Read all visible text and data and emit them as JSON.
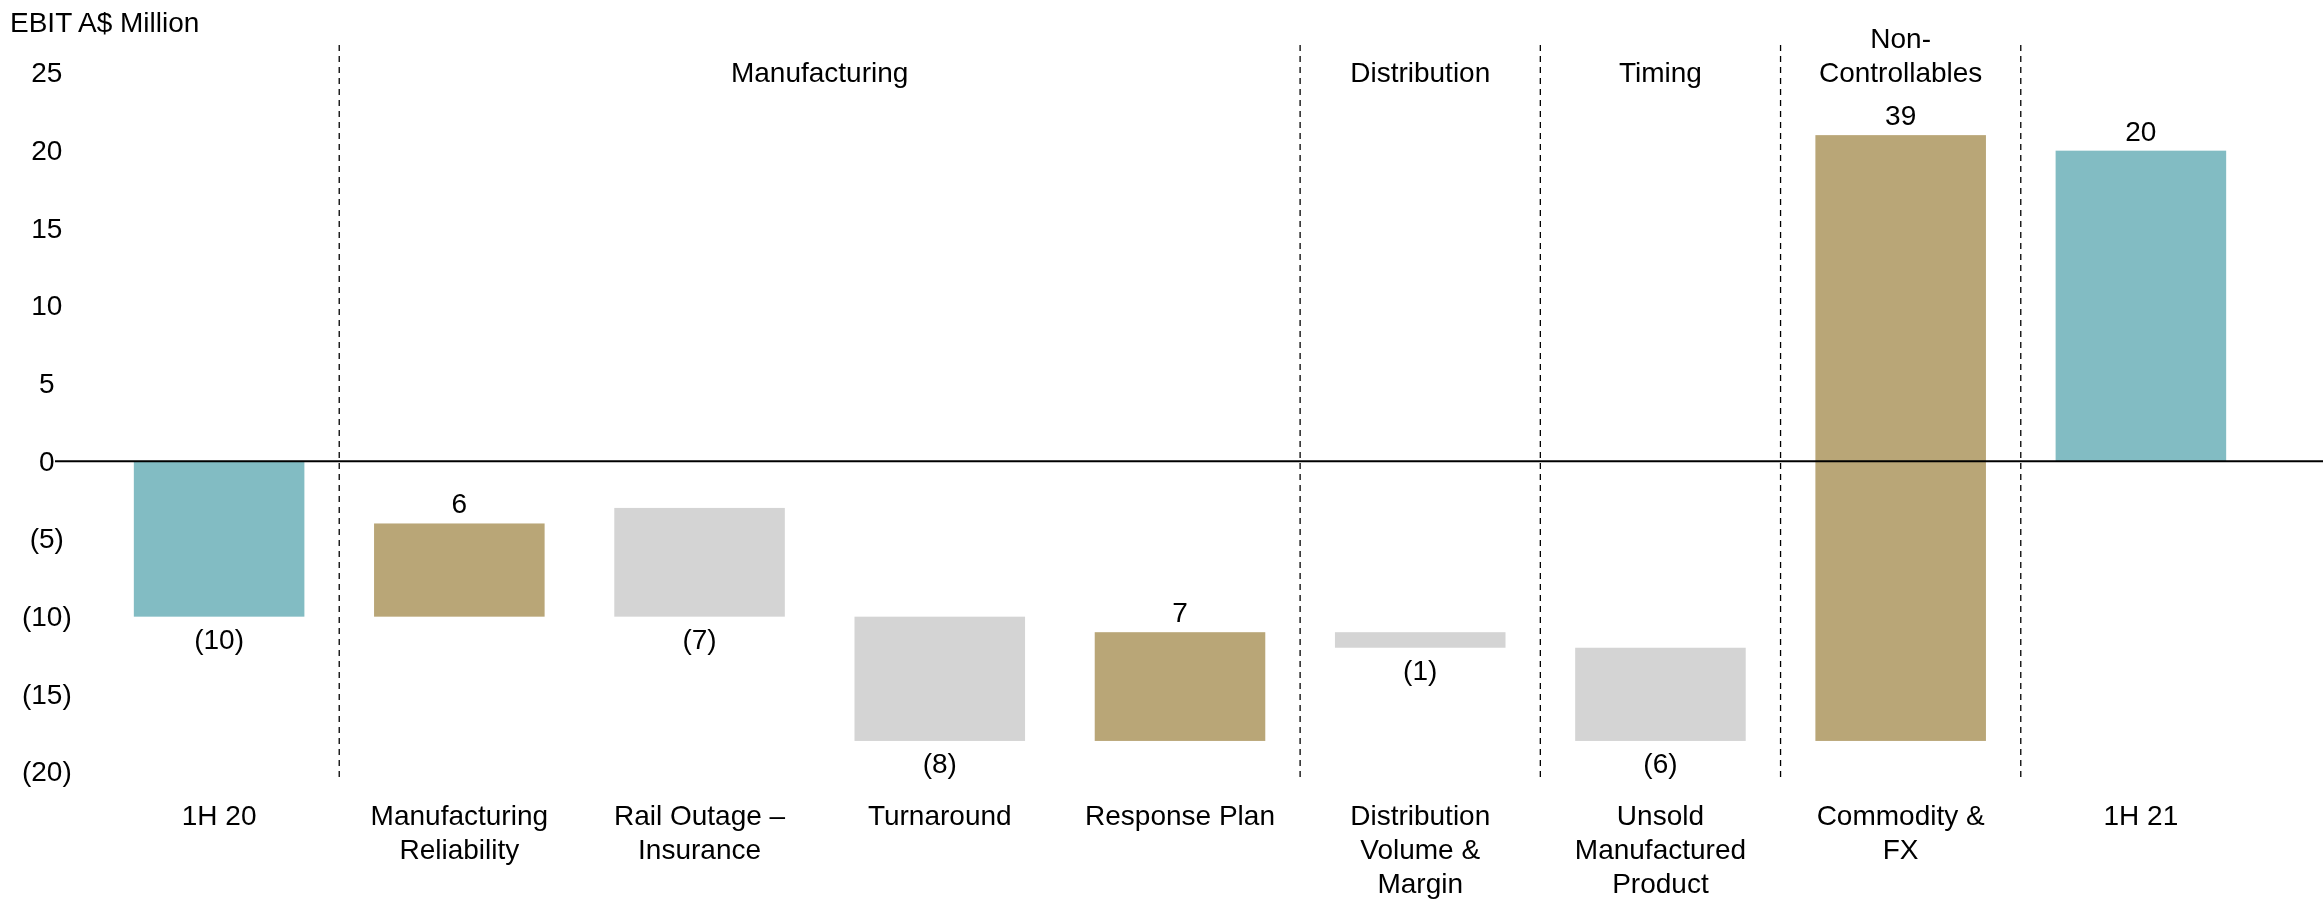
{
  "chart_data": {
    "type": "bar",
    "ylabel": "EBIT A$ Million",
    "categories": [
      "1H 20",
      "Manufacturing Reliability",
      "Rail Outage – Insurance",
      "Turnaround",
      "Response Plan",
      "Distribution Volume & Margin",
      "Unsold Manufactured Product",
      "Commodity & FX",
      "1H 21"
    ],
    "values": [
      -10,
      6,
      -7,
      -8,
      7,
      -1,
      -6,
      39,
      20
    ],
    "base": [
      0,
      -10,
      -3,
      -10,
      -18,
      -11,
      -12,
      -18,
      0
    ],
    "colors": [
      "#82bcc3",
      "#b9a677",
      "#d4d4d4",
      "#d4d4d4",
      "#b9a677",
      "#d4d4d4",
      "#d4d4d4",
      "#b9a677",
      "#82bcc3"
    ],
    "value_labels": [
      "(10)",
      "6",
      "(7)",
      "(8)",
      "7",
      "(1)",
      "(6)",
      "39",
      "20"
    ],
    "ylim": [
      -20,
      25
    ],
    "yticks": [
      {
        "value": -20,
        "label": "(20)"
      },
      {
        "value": -15,
        "label": "(15)"
      },
      {
        "value": -10,
        "label": "(10)"
      },
      {
        "value": -5,
        "label": "(5)"
      },
      0,
      5,
      10,
      15,
      20,
      25
    ],
    "annotations": [
      "Manufacturing",
      "Distribution",
      "Timing",
      "Non-Controllables"
    ]
  }
}
